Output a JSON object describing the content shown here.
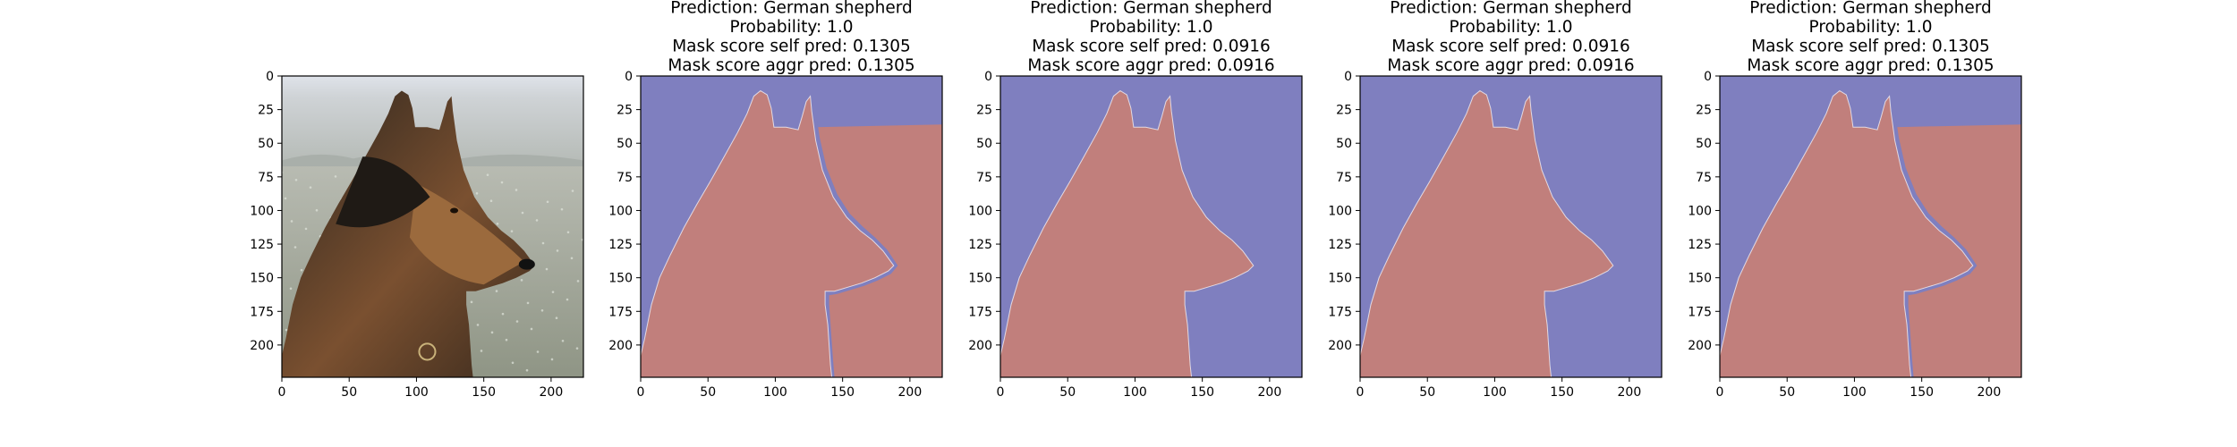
{
  "chart_data": [
    {
      "type": "image",
      "content": "photo of a German shepherd dog in profile, frosty meadow background",
      "xlim": [
        0,
        224
      ],
      "ylim": [
        224,
        0
      ],
      "xticks": [
        0,
        50,
        100,
        150,
        200
      ],
      "yticks": [
        0,
        25,
        50,
        75,
        100,
        125,
        150,
        175,
        200
      ],
      "title_lines": []
    },
    {
      "type": "heatmap",
      "content": "binary segmentation mask (dog region red, background blue)",
      "xlim": [
        0,
        224
      ],
      "ylim": [
        224,
        0
      ],
      "xticks": [
        0,
        50,
        100,
        150,
        200
      ],
      "yticks": [
        0,
        25,
        50,
        75,
        100,
        125,
        150,
        175,
        200
      ],
      "title_lines": [
        "Prediction: German shepherd",
        "Probability: 1.0",
        "Mask score self pred: 0.1305",
        "Mask score aggr pred: 0.1305"
      ],
      "variant": "with-rect"
    },
    {
      "type": "heatmap",
      "content": "binary segmentation mask (dog region red, background blue)",
      "xlim": [
        0,
        224
      ],
      "ylim": [
        224,
        0
      ],
      "xticks": [
        0,
        50,
        100,
        150,
        200
      ],
      "yticks": [
        0,
        25,
        50,
        75,
        100,
        125,
        150,
        175,
        200
      ],
      "title_lines": [
        "Prediction: German shepherd",
        "Probability: 1.0",
        "Mask score self pred: 0.0916",
        "Mask score aggr pred: 0.0916"
      ],
      "variant": "dog-only"
    },
    {
      "type": "heatmap",
      "content": "binary segmentation mask (dog region red, background blue)",
      "xlim": [
        0,
        224
      ],
      "ylim": [
        224,
        0
      ],
      "xticks": [
        0,
        50,
        100,
        150,
        200
      ],
      "yticks": [
        0,
        25,
        50,
        75,
        100,
        125,
        150,
        175,
        200
      ],
      "title_lines": [
        "Prediction: German shepherd",
        "Probability: 1.0",
        "Mask score self pred: 0.0916",
        "Mask score aggr pred: 0.0916"
      ],
      "variant": "dog-only"
    },
    {
      "type": "heatmap",
      "content": "binary segmentation mask (dog region red, background blue)",
      "xlim": [
        0,
        224
      ],
      "ylim": [
        224,
        0
      ],
      "xticks": [
        0,
        50,
        100,
        150,
        200
      ],
      "yticks": [
        0,
        25,
        50,
        75,
        100,
        125,
        150,
        175,
        200
      ],
      "title_lines": [
        "Prediction: German shepherd",
        "Probability: 1.0",
        "Mask score self pred: 0.1305",
        "Mask score aggr pred: 0.1305"
      ],
      "variant": "with-rect"
    }
  ],
  "colors": {
    "mask_foreground": "#c17f7c",
    "mask_background": "#7f7fbf",
    "edge": "#ffffff"
  }
}
